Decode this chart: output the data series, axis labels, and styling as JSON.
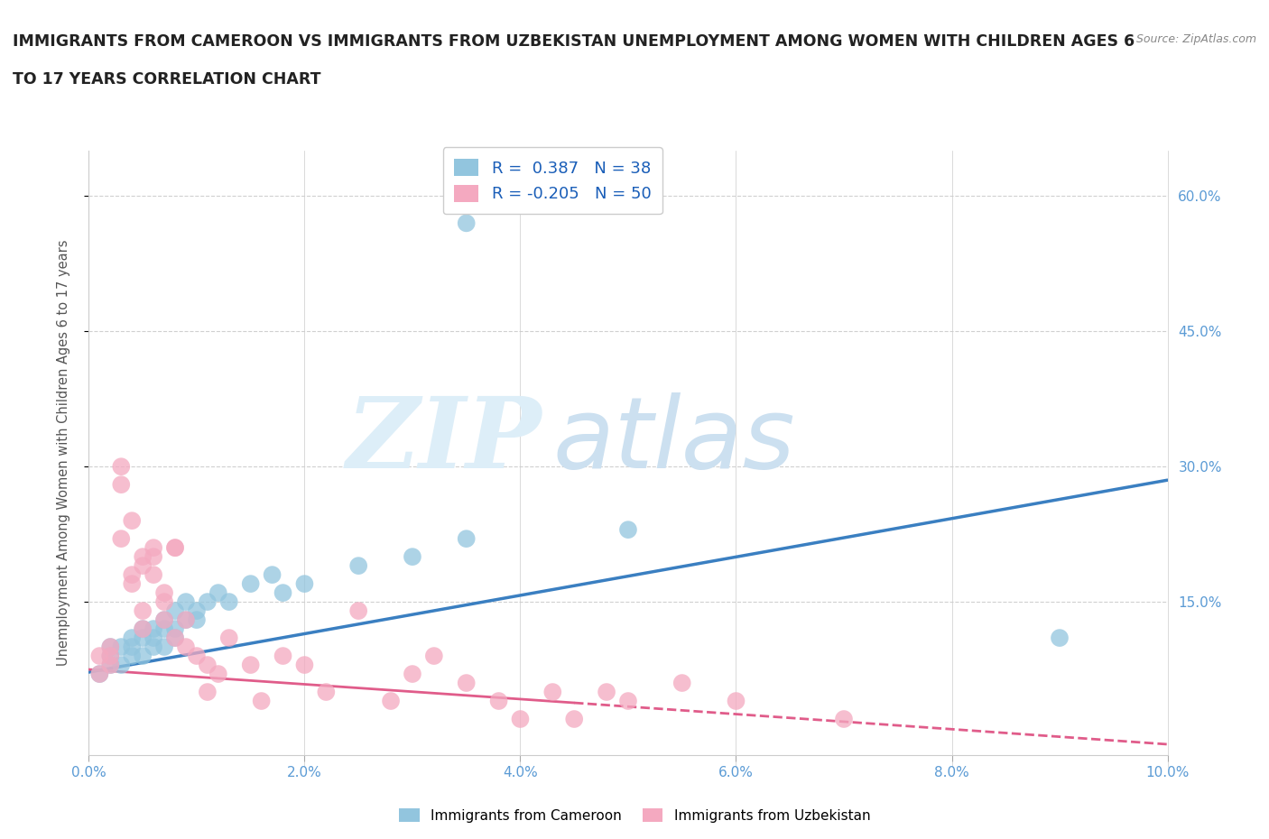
{
  "title_line1": "IMMIGRANTS FROM CAMEROON VS IMMIGRANTS FROM UZBEKISTAN UNEMPLOYMENT AMONG WOMEN WITH CHILDREN AGES 6",
  "title_line2": "TO 17 YEARS CORRELATION CHART",
  "source": "Source: ZipAtlas.com",
  "ylabel": "Unemployment Among Women with Children Ages 6 to 17 years",
  "xlim": [
    0.0,
    0.1
  ],
  "ylim": [
    -0.02,
    0.65
  ],
  "yticks": [
    0.15,
    0.3,
    0.45,
    0.6
  ],
  "xticks": [
    0.0,
    0.02,
    0.04,
    0.06,
    0.08,
    0.1
  ],
  "xtick_labels": [
    "0.0%",
    "2.0%",
    "4.0%",
    "6.0%",
    "8.0%",
    "10.0%"
  ],
  "ytick_labels": [
    "15.0%",
    "30.0%",
    "45.0%",
    "60.0%"
  ],
  "grid_color": "#d0d0d0",
  "background_color": "#ffffff",
  "legend_R1": " 0.387",
  "legend_N1": "38",
  "legend_R2": "-0.205",
  "legend_N2": "50",
  "color_cameroon": "#92c5de",
  "color_uzbekistan": "#f4a9c0",
  "trendline_color_cameroon": "#3a7fc1",
  "trendline_color_uzbekistan": "#e05c8a",
  "tick_color": "#5b9bd5",
  "title_color": "#222222",
  "source_color": "#888888",
  "cameroon_x": [
    0.001,
    0.002,
    0.002,
    0.002,
    0.003,
    0.003,
    0.004,
    0.004,
    0.004,
    0.005,
    0.005,
    0.005,
    0.006,
    0.006,
    0.006,
    0.007,
    0.007,
    0.007,
    0.008,
    0.008,
    0.008,
    0.009,
    0.009,
    0.01,
    0.01,
    0.011,
    0.012,
    0.013,
    0.015,
    0.017,
    0.018,
    0.02,
    0.025,
    0.03,
    0.035,
    0.05,
    0.09,
    0.035
  ],
  "cameroon_y": [
    0.07,
    0.08,
    0.09,
    0.1,
    0.08,
    0.1,
    0.09,
    0.11,
    0.1,
    0.09,
    0.11,
    0.12,
    0.1,
    0.12,
    0.11,
    0.12,
    0.13,
    0.1,
    0.12,
    0.14,
    0.11,
    0.13,
    0.15,
    0.13,
    0.14,
    0.15,
    0.16,
    0.15,
    0.17,
    0.18,
    0.16,
    0.17,
    0.19,
    0.2,
    0.22,
    0.23,
    0.11,
    0.57
  ],
  "uzbekistan_x": [
    0.001,
    0.001,
    0.002,
    0.002,
    0.002,
    0.003,
    0.003,
    0.003,
    0.004,
    0.004,
    0.004,
    0.005,
    0.005,
    0.005,
    0.005,
    0.006,
    0.006,
    0.006,
    0.007,
    0.007,
    0.007,
    0.008,
    0.008,
    0.008,
    0.009,
    0.009,
    0.01,
    0.011,
    0.011,
    0.012,
    0.013,
    0.015,
    0.016,
    0.018,
    0.02,
    0.022,
    0.025,
    0.028,
    0.03,
    0.032,
    0.035,
    0.038,
    0.04,
    0.043,
    0.045,
    0.048,
    0.05,
    0.055,
    0.06,
    0.07
  ],
  "uzbekistan_y": [
    0.07,
    0.09,
    0.09,
    0.1,
    0.08,
    0.3,
    0.28,
    0.22,
    0.24,
    0.18,
    0.17,
    0.2,
    0.19,
    0.14,
    0.12,
    0.21,
    0.2,
    0.18,
    0.16,
    0.15,
    0.13,
    0.21,
    0.21,
    0.11,
    0.13,
    0.1,
    0.09,
    0.08,
    0.05,
    0.07,
    0.11,
    0.08,
    0.04,
    0.09,
    0.08,
    0.05,
    0.14,
    0.04,
    0.07,
    0.09,
    0.06,
    0.04,
    0.02,
    0.05,
    0.02,
    0.05,
    0.04,
    0.06,
    0.04,
    0.02
  ],
  "trendline_cam_x0": 0.0,
  "trendline_cam_y0": 0.072,
  "trendline_cam_x1": 0.1,
  "trendline_cam_y1": 0.285,
  "trendline_uzb_solid_x0": 0.0,
  "trendline_uzb_solid_y0": 0.075,
  "trendline_uzb_solid_x1": 0.045,
  "trendline_uzb_solid_y1": 0.038,
  "trendline_uzb_dash_x0": 0.045,
  "trendline_uzb_dash_y0": 0.038,
  "trendline_uzb_dash_x1": 0.1,
  "trendline_uzb_dash_y1": -0.008
}
